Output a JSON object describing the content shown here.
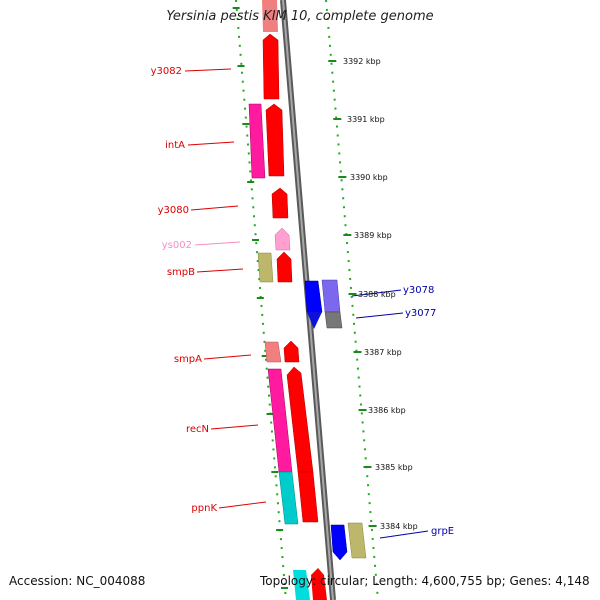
{
  "title": "Yersinia pestis KIM 10, complete genome",
  "accession_label": "Accession: NC_004088",
  "topology_label": "Topology: circular; Length: 4,600,755 bp; Genes: 4,148",
  "colors": {
    "red": "#ff0000",
    "pink": "#ff1aa0",
    "light_red": "#f08080",
    "light_pink": "#ffa0d0",
    "khaki": "#bdb76b",
    "cyan": "#00cccc",
    "blue": "#0000ff",
    "slate_blue": "#7b68ee",
    "gray": "#777777",
    "green": "#1a8a1a",
    "dark_navy": "#00008b",
    "backbone": "#8c8c8c"
  },
  "kbp_ticks": [
    "3392 kbp",
    "3391 kbp",
    "3390 kbp",
    "3389 kbp",
    "3388 kbp",
    "3387 kbp",
    "3386 kbp",
    "3385 kbp",
    "3384 kbp"
  ],
  "gene_labels_left": [
    {
      "name": "y3082",
      "color": "#dd0000"
    },
    {
      "name": "intA",
      "color": "#dd0000"
    },
    {
      "name": "y3080",
      "color": "#dd0000"
    },
    {
      "name": "ys002",
      "color": "#f090c8"
    },
    {
      "name": "smpB",
      "color": "#dd0000"
    },
    {
      "name": "smpA",
      "color": "#dd0000"
    },
    {
      "name": "recN",
      "color": "#dd0000"
    },
    {
      "name": "ppnK",
      "color": "#dd0000"
    }
  ],
  "gene_labels_right": [
    {
      "name": "y3078",
      "color": "#0000aa"
    },
    {
      "name": "y3077",
      "color": "#0000aa"
    },
    {
      "name": "grpE",
      "color": "#0000aa"
    }
  ]
}
